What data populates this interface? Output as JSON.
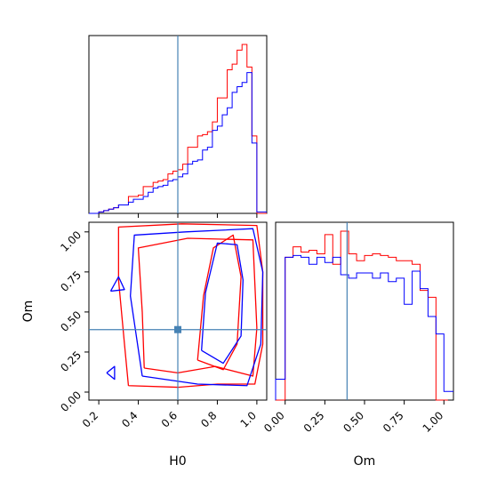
{
  "chart_data": {
    "type": "corner",
    "parameters": [
      "H0",
      "Om"
    ],
    "truth": {
      "H0": 0.6,
      "Om": 0.39
    },
    "colors": {
      "run_a": "#ff0000",
      "run_b": "#0000ff",
      "truth": "#4682b4"
    },
    "axes": {
      "H0": {
        "xlabel": "H0",
        "xlim": [
          0.15,
          1.05
        ],
        "ticks": [
          0.2,
          0.4,
          0.6,
          0.8,
          1.0
        ],
        "tick_labels": [
          "0.2",
          "0.4",
          "0.6",
          "0.8",
          "1.0"
        ]
      },
      "Om": {
        "xlabel": "Om",
        "ylabel": "Om",
        "xlim": [
          -0.06,
          1.06
        ],
        "ylim": [
          -0.05,
          1.06
        ],
        "ticks": [
          0.0,
          0.25,
          0.5,
          0.75,
          1.0
        ],
        "tick_labels": [
          "0.00",
          "0.25",
          "0.50",
          "0.75",
          "1.00"
        ]
      }
    },
    "hist_H0": {
      "bin_edges": [
        0.15,
        0.175,
        0.2,
        0.225,
        0.25,
        0.275,
        0.3,
        0.325,
        0.35,
        0.375,
        0.4,
        0.425,
        0.45,
        0.475,
        0.5,
        0.525,
        0.55,
        0.575,
        0.6,
        0.625,
        0.65,
        0.675,
        0.7,
        0.725,
        0.75,
        0.775,
        0.8,
        0.825,
        0.85,
        0.875,
        0.9,
        0.925,
        0.95,
        0.975,
        1.0,
        1.025,
        1.05
      ],
      "series": [
        {
          "color": "red",
          "values": [
            0,
            0,
            1,
            2,
            3,
            4,
            6,
            6,
            12,
            12,
            13,
            19,
            19,
            22,
            23,
            24,
            28,
            30,
            31,
            35,
            47,
            47,
            55,
            56,
            58,
            65,
            82,
            82,
            102,
            106,
            116,
            120,
            104,
            55,
            0,
            0
          ]
        },
        {
          "color": "blue",
          "values": [
            0,
            0,
            1,
            2,
            3,
            4,
            6,
            6,
            8,
            10,
            10,
            12,
            15,
            18,
            19,
            20,
            23,
            24,
            26,
            28,
            35,
            37,
            38,
            45,
            47,
            59,
            62,
            70,
            75,
            86,
            90,
            93,
            100,
            50,
            1,
            1
          ]
        }
      ]
    },
    "hist_Om": {
      "bin_edges": [
        -0.06,
        -0.025,
        0.0,
        0.025,
        0.05,
        0.075,
        0.1,
        0.125,
        0.15,
        0.175,
        0.2,
        0.225,
        0.25,
        0.275,
        0.3,
        0.325,
        0.35,
        0.375,
        0.4,
        0.425,
        0.45,
        0.475,
        0.5,
        0.525,
        0.55,
        0.575,
        0.6,
        0.625,
        0.65,
        0.675,
        0.7,
        0.725,
        0.75,
        0.775,
        0.8,
        0.825,
        0.85,
        0.875,
        0.9,
        0.925,
        0.95,
        0.975,
        1.0,
        1.025,
        1.06
      ],
      "series": [
        {
          "color": "red",
          "values": [
            0,
            0,
            82,
            82,
            88,
            88,
            85,
            85,
            86,
            86,
            84,
            84,
            95,
            95,
            78,
            78,
            97,
            97,
            84,
            84,
            80,
            80,
            83,
            83,
            84,
            84,
            83,
            83,
            82,
            82,
            80,
            80,
            80,
            80,
            78,
            78,
            63,
            63,
            59,
            59,
            0,
            0,
            0
          ]
        },
        {
          "color": "blue",
          "values": [
            12,
            12,
            82,
            82,
            83,
            83,
            82,
            82,
            78,
            78,
            82,
            82,
            79,
            79,
            82,
            82,
            72,
            72,
            70,
            70,
            73,
            73,
            73,
            73,
            70,
            70,
            73,
            73,
            68,
            68,
            70,
            70,
            55,
            55,
            74,
            74,
            64,
            64,
            48,
            48,
            38,
            38,
            5,
            5
          ]
        }
      ]
    },
    "contours_H0_Om": [
      {
        "color": "red",
        "points": [
          [
            0.35,
            0.04
          ],
          [
            0.6,
            0.03
          ],
          [
            0.8,
            0.05
          ],
          [
            0.99,
            0.05
          ],
          [
            1.03,
            0.3
          ],
          [
            1.03,
            0.75
          ],
          [
            1.0,
            1.04
          ],
          [
            0.62,
            1.05
          ],
          [
            0.3,
            1.03
          ],
          [
            0.3,
            0.7
          ],
          [
            0.33,
            0.3
          ],
          [
            0.35,
            0.04
          ]
        ]
      },
      {
        "color": "red",
        "points": [
          [
            0.43,
            0.15
          ],
          [
            0.6,
            0.12
          ],
          [
            0.79,
            0.16
          ],
          [
            0.98,
            0.1
          ],
          [
            1.0,
            0.4
          ],
          [
            0.98,
            0.95
          ],
          [
            0.65,
            0.96
          ],
          [
            0.4,
            0.9
          ],
          [
            0.42,
            0.5
          ],
          [
            0.43,
            0.15
          ]
        ]
      },
      {
        "color": "red",
        "points": [
          [
            0.7,
            0.2
          ],
          [
            0.83,
            0.14
          ],
          [
            0.9,
            0.3
          ],
          [
            0.92,
            0.72
          ],
          [
            0.88,
            0.98
          ],
          [
            0.78,
            0.9
          ],
          [
            0.73,
            0.6
          ],
          [
            0.7,
            0.2
          ]
        ]
      },
      {
        "color": "blue",
        "points": [
          [
            0.42,
            0.1
          ],
          [
            0.7,
            0.05
          ],
          [
            0.95,
            0.04
          ],
          [
            1.02,
            0.3
          ],
          [
            1.03,
            0.75
          ],
          [
            0.98,
            1.02
          ],
          [
            0.64,
            1.0
          ],
          [
            0.38,
            0.98
          ],
          [
            0.36,
            0.6
          ],
          [
            0.42,
            0.1
          ]
        ]
      },
      {
        "color": "blue",
        "points": [
          [
            0.72,
            0.26
          ],
          [
            0.83,
            0.18
          ],
          [
            0.92,
            0.35
          ],
          [
            0.93,
            0.7
          ],
          [
            0.9,
            0.92
          ],
          [
            0.8,
            0.93
          ],
          [
            0.74,
            0.62
          ],
          [
            0.72,
            0.26
          ]
        ]
      },
      {
        "color": "blue",
        "points": [
          [
            0.24,
            0.12
          ],
          [
            0.28,
            0.08
          ],
          [
            0.28,
            0.16
          ],
          [
            0.24,
            0.12
          ]
        ]
      },
      {
        "color": "blue",
        "points": [
          [
            0.26,
            0.63
          ],
          [
            0.3,
            0.72
          ],
          [
            0.33,
            0.64
          ],
          [
            0.26,
            0.63
          ]
        ]
      }
    ]
  }
}
